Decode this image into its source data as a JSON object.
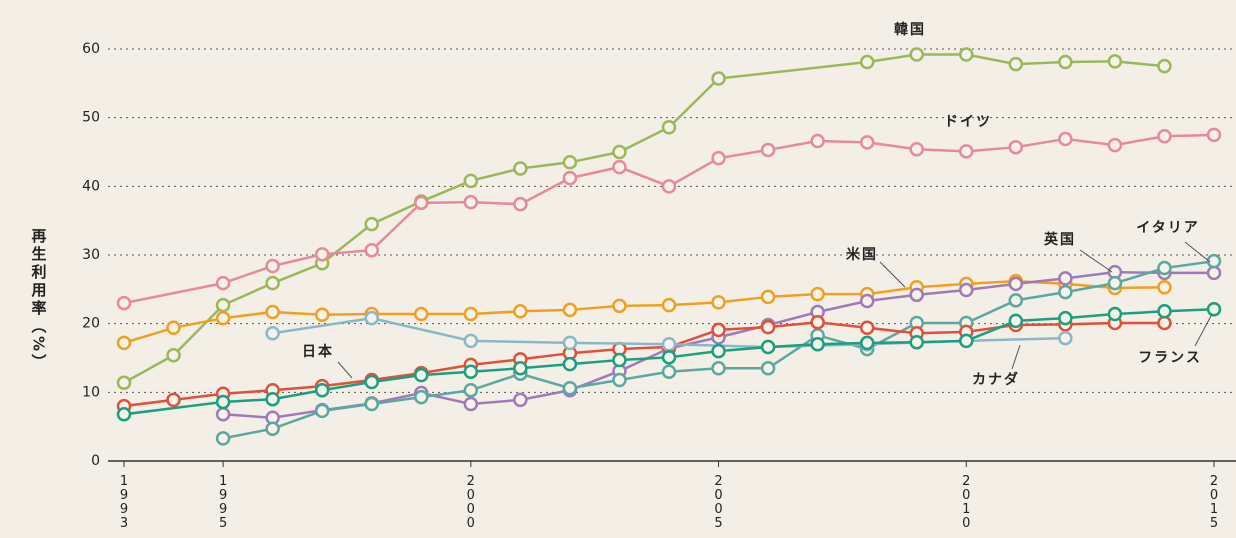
{
  "chart_data": {
    "type": "line",
    "ylabel": "再生利用率（%）",
    "xlim": [
      1993,
      2015
    ],
    "xticks": [
      1993,
      1995,
      2000,
      2005,
      2010,
      2015
    ],
    "ylim": [
      0,
      60
    ],
    "yticks": [
      0,
      10,
      20,
      30,
      40,
      50,
      60
    ],
    "grid": true,
    "series": [
      {
        "name": "韓国",
        "color": "#9ab85a",
        "x": [
          1993,
          1994,
          1995,
          1996,
          1997,
          1998,
          1999,
          2000,
          2001,
          2002,
          2003,
          2004,
          2005,
          2008,
          2009,
          2010,
          2011,
          2012,
          2013,
          2014
        ],
        "values": [
          11.4,
          15.4,
          22.7,
          25.9,
          28.8,
          34.5,
          37.8,
          40.8,
          42.6,
          43.5,
          45.0,
          48.6,
          55.7,
          58.1,
          59.2,
          59.2,
          57.8,
          58.1,
          58.2,
          57.5
        ]
      },
      {
        "name": "ドイツ",
        "color": "#e8899a",
        "x": [
          1993,
          1995,
          1996,
          1997,
          1998,
          1999,
          2000,
          2001,
          2002,
          2003,
          2004,
          2005,
          2006,
          2007,
          2008,
          2009,
          2010,
          2011,
          2012,
          2013,
          2014,
          2015
        ],
        "values": [
          23.0,
          25.9,
          28.4,
          30.1,
          30.7,
          37.6,
          37.7,
          37.4,
          41.2,
          42.8,
          40.0,
          44.1,
          45.3,
          46.6,
          46.4,
          45.4,
          45.1,
          45.7,
          46.9,
          46.0,
          47.3,
          47.5
        ]
      },
      {
        "name": "米国",
        "color": "#f0a020",
        "x": [
          1993,
          1994,
          1995,
          1996,
          1997,
          1998,
          1999,
          2000,
          2001,
          2002,
          2003,
          2004,
          2005,
          2006,
          2007,
          2008,
          2009,
          2010,
          2011,
          2012,
          2013,
          2014
        ],
        "values": [
          17.2,
          19.4,
          20.8,
          21.7,
          21.3,
          21.4,
          21.4,
          21.4,
          21.8,
          22.0,
          22.6,
          22.7,
          23.1,
          23.9,
          24.3,
          24.3,
          25.3,
          25.8,
          26.2,
          25.8,
          25.2,
          25.3
        ]
      },
      {
        "name": "英国",
        "color": "#a07ab8",
        "x": [
          1995,
          1996,
          1997,
          1998,
          1999,
          2000,
          2001,
          2002,
          2003,
          2004,
          2005,
          2006,
          2007,
          2008,
          2009,
          2010,
          2011,
          2012,
          2013,
          2014,
          2015
        ],
        "values": [
          6.8,
          6.3,
          7.4,
          8.4,
          9.9,
          8.3,
          8.9,
          10.3,
          13.1,
          16.4,
          18.0,
          19.8,
          21.7,
          23.3,
          24.2,
          24.9,
          25.8,
          26.6,
          27.5,
          27.4,
          27.4
        ]
      },
      {
        "name": "イタリア",
        "color": "#5aa8a0",
        "x": [
          1995,
          1996,
          1997,
          1998,
          1999,
          2000,
          2001,
          2002,
          2003,
          2004,
          2005,
          2006,
          2007,
          2008,
          2009,
          2010,
          2011,
          2012,
          2013,
          2014,
          2015
        ],
        "values": [
          3.3,
          4.7,
          7.3,
          8.3,
          9.3,
          10.3,
          12.7,
          10.6,
          11.8,
          13.0,
          13.5,
          13.5,
          18.3,
          16.3,
          20.1,
          20.1,
          23.4,
          24.6,
          25.9,
          28.1,
          29.1
        ]
      },
      {
        "name": "日本",
        "color": "#e0503a",
        "x": [
          1993,
          1994,
          1995,
          1996,
          1997,
          1998,
          1999,
          2000,
          2001,
          2002,
          2003,
          2004,
          2005,
          2006,
          2007,
          2008,
          2009,
          2010,
          2011,
          2012,
          2013,
          2014
        ],
        "values": [
          8.0,
          8.9,
          9.8,
          10.3,
          10.9,
          11.8,
          12.8,
          14.0,
          14.8,
          15.7,
          16.3,
          16.6,
          19.1,
          19.5,
          20.2,
          19.4,
          18.6,
          18.8,
          19.8,
          19.9,
          20.1,
          20.1
        ]
      },
      {
        "name": "カナダ",
        "color": "#88b8c8",
        "x": [
          1996,
          1998,
          2000,
          2002,
          2004,
          2006,
          2008,
          2010,
          2012
        ],
        "values": [
          18.6,
          20.8,
          17.5,
          17.2,
          17.0,
          16.6,
          17.0,
          17.5,
          17.9
        ]
      },
      {
        "name": "フランス",
        "color": "#1aa080",
        "x": [
          1993,
          1995,
          1996,
          1997,
          1998,
          1999,
          2000,
          2001,
          2002,
          2003,
          2004,
          2005,
          2006,
          2007,
          2008,
          2009,
          2010,
          2011,
          2012,
          2013,
          2014,
          2015
        ],
        "values": [
          6.8,
          8.6,
          9.0,
          10.3,
          11.5,
          12.5,
          13.0,
          13.5,
          14.1,
          14.7,
          15.1,
          16.0,
          16.6,
          17.0,
          17.2,
          17.3,
          17.5,
          20.4,
          20.8,
          21.4,
          21.8,
          22.1
        ]
      }
    ]
  }
}
